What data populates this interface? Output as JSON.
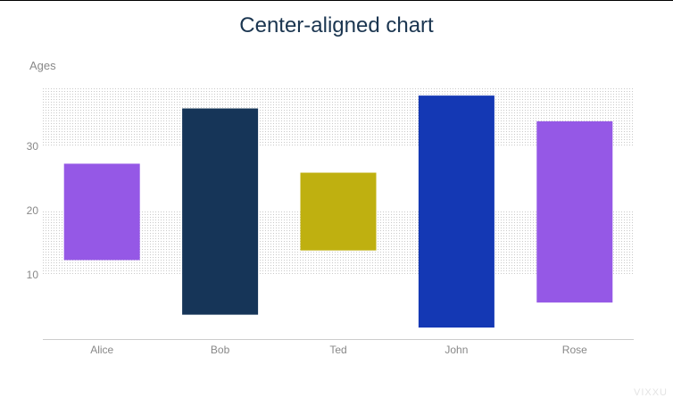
{
  "chart_data": {
    "type": "bar",
    "variant": "floating-range",
    "title": "Center-aligned chart",
    "ylabel": "Ages",
    "xlabel": "",
    "ylim": [
      0,
      40
    ],
    "yticks": [
      10,
      20,
      30
    ],
    "categories": [
      "Alice",
      "Bob",
      "Ted",
      "John",
      "Rose"
    ],
    "ranges": [
      {
        "low": 12.3,
        "high": 27.3
      },
      {
        "low": 3.8,
        "high": 35.9
      },
      {
        "low": 13.8,
        "high": 25.9
      },
      {
        "low": 1.8,
        "high": 37.9
      },
      {
        "low": 5.7,
        "high": 33.9
      }
    ],
    "colors": [
      "#9558e6",
      "#163558",
      "#bfb010",
      "#1438b4",
      "#9558e6"
    ],
    "grid": "alternating dotted bands",
    "legend": "none"
  },
  "watermark": "VIXXU"
}
